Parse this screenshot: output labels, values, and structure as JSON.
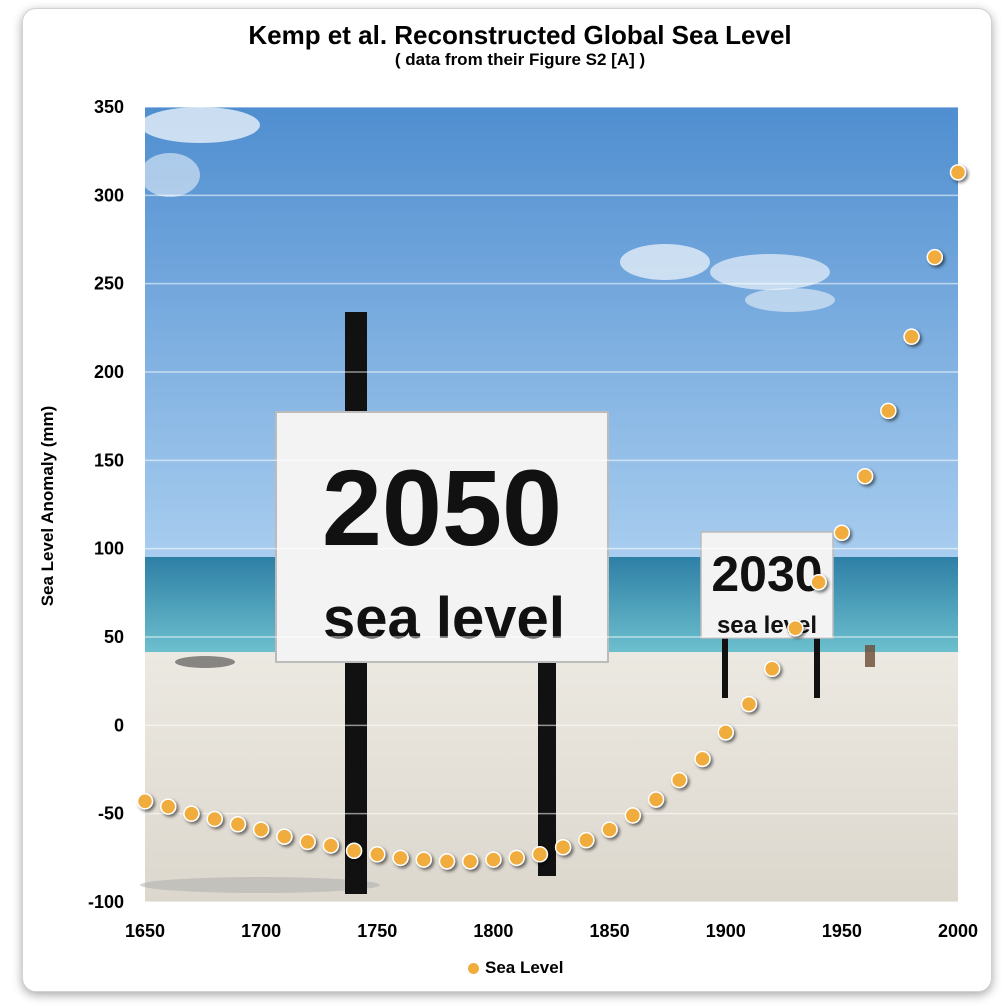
{
  "chart_data": {
    "type": "scatter",
    "title": "Kemp et al. Reconstructed Global Sea Level",
    "subtitle": "( data from their Figure S2 [A] )",
    "xlabel": "",
    "ylabel": "Sea Level Anomaly (mm)",
    "xlim": [
      1650,
      2000
    ],
    "ylim": [
      -100,
      350
    ],
    "x_ticks": [
      1650,
      1700,
      1750,
      1800,
      1850,
      1900,
      1950,
      2000
    ],
    "y_ticks": [
      -100,
      -50,
      0,
      50,
      100,
      150,
      200,
      250,
      300,
      350
    ],
    "grid": true,
    "legend_position": "bottom",
    "background_image": "beach-with-sea-level-signs",
    "series": [
      {
        "name": "Sea Level",
        "color": "#f0ad3c",
        "x": [
          1650,
          1660,
          1670,
          1680,
          1690,
          1700,
          1710,
          1720,
          1730,
          1740,
          1750,
          1760,
          1770,
          1780,
          1790,
          1800,
          1810,
          1820,
          1830,
          1840,
          1850,
          1860,
          1870,
          1880,
          1890,
          1900,
          1910,
          1920,
          1930,
          1940,
          1950,
          1960,
          1970,
          1980,
          1990,
          2000
        ],
        "y": [
          -43,
          -46,
          -50,
          -53,
          -56,
          -59,
          -63,
          -66,
          -68,
          -71,
          -73,
          -75,
          -76,
          -77,
          -77,
          -76,
          -75,
          -73,
          -69,
          -65,
          -59,
          -51,
          -42,
          -31,
          -19,
          -4,
          12,
          32,
          55,
          81,
          109,
          141,
          178,
          220,
          265,
          313
        ]
      }
    ]
  },
  "photo_signs": {
    "big_year": "2050",
    "big_caption": "sea level",
    "small_year": "2030",
    "small_caption": "sea level"
  },
  "legend": {
    "label": "Sea Level"
  }
}
